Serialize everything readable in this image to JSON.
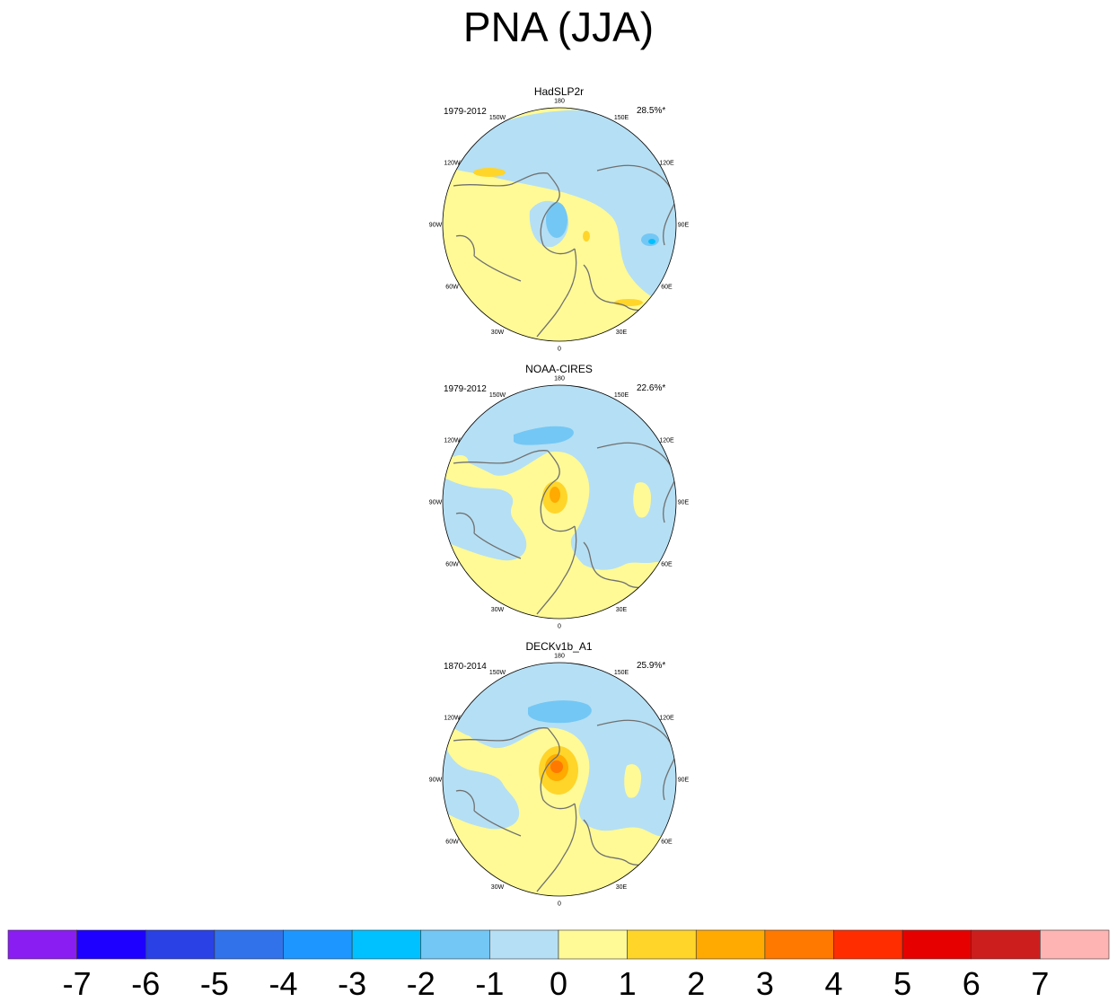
{
  "title": "PNA (JJA)",
  "colors": {
    "neg7": "#8a1ef2",
    "neg6": "#1d00ff",
    "neg5": "#2a41e6",
    "neg4": "#3172ea",
    "neg3": "#1e96ff",
    "neg2": "#00c1ff",
    "neg1": "#73c7f5",
    "zero_neg": "#b5dff4",
    "zero_pos": "#fffa96",
    "pos1": "#ffd52a",
    "pos2": "#ffaa00",
    "pos3": "#ff7800",
    "pos4": "#ff2d00",
    "pos5": "#e60000",
    "pos6": "#cd1e1e",
    "pos7": "#ffb4b4",
    "coast": "#707070"
  },
  "chart_data": {
    "type": "heatmap",
    "projection": "north-polar-stereographic",
    "season": "JJA",
    "mode": "PNA",
    "longitude_labels": [
      "180",
      "150E",
      "120E",
      "90E",
      "60E",
      "30E",
      "0",
      "30W",
      "60W",
      "90W",
      "120W",
      "150W"
    ],
    "panels": [
      {
        "name": "HadSLP2r",
        "years": "1979-2012",
        "variance_explained": "28.5%*",
        "features": [
          {
            "region": "North Pacific",
            "sign": "negative",
            "level": -1
          },
          {
            "region": "Canada / Atlantic",
            "sign": "positive",
            "level": 1
          },
          {
            "region": "Central Asia",
            "sign": "negative",
            "level": -2
          }
        ]
      },
      {
        "name": "NOAA-CIRES",
        "years": "1979-2012",
        "variance_explained": "22.6%*",
        "features": [
          {
            "region": "North Pacific",
            "sign": "negative",
            "level": -2
          },
          {
            "region": "Canadian Arctic",
            "sign": "positive",
            "level": 3
          },
          {
            "region": "Eurasia",
            "sign": "negative",
            "level": -1
          }
        ]
      },
      {
        "name": "DECKv1b_A1",
        "years": "1870-2014",
        "variance_explained": "25.9%*",
        "features": [
          {
            "region": "North Pacific",
            "sign": "negative",
            "level": -2
          },
          {
            "region": "Canadian Arctic",
            "sign": "positive",
            "level": 4
          },
          {
            "region": "Eurasia",
            "sign": "negative",
            "level": -1
          }
        ]
      }
    ],
    "colorbar": {
      "tick_labels": [
        "-7",
        "-6",
        "-5",
        "-4",
        "-3",
        "-2",
        "-1",
        "0",
        "1",
        "2",
        "3",
        "4",
        "5",
        "6",
        "7"
      ],
      "levels": [
        -7,
        -6,
        -5,
        -4,
        -3,
        -2,
        -1,
        0,
        1,
        2,
        3,
        4,
        5,
        6,
        7
      ]
    }
  }
}
